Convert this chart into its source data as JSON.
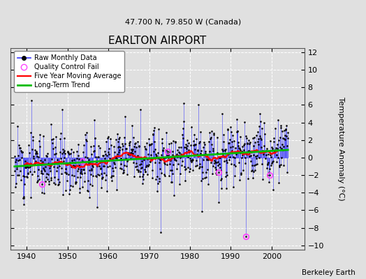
{
  "title": "EARLTON AIRPORT",
  "subtitle": "47.700 N, 79.850 W (Canada)",
  "ylabel": "Temperature Anomaly (°C)",
  "credit": "Berkeley Earth",
  "ylim": [
    -10.5,
    12.5
  ],
  "yticks": [
    -10,
    -8,
    -6,
    -4,
    -2,
    0,
    2,
    4,
    6,
    8,
    10,
    12
  ],
  "xlim": [
    1936,
    2008
  ],
  "xticks": [
    1940,
    1950,
    1960,
    1970,
    1980,
    1990,
    2000
  ],
  "bg_color": "#e0e0e0",
  "plot_bg_color": "#e0e0e0",
  "line_color": "#3333ff",
  "dot_color": "#000000",
  "ma_color": "#ff0000",
  "trend_color": "#00bb00",
  "qc_color": "#ff44ff",
  "seed": 12,
  "n_points": 804
}
